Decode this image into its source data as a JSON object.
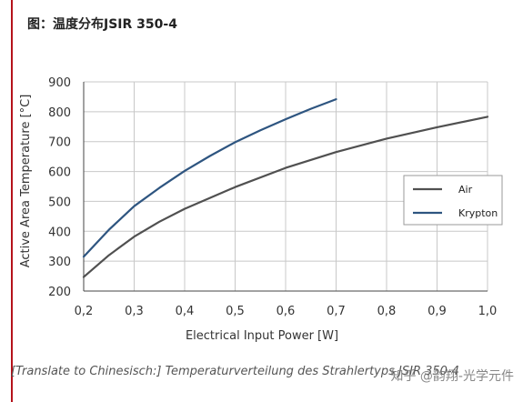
{
  "header": {
    "prefix": "图：",
    "title": "温度分布JSIR 350-4"
  },
  "caption": "[Translate to Chinesisch:] Temperaturverteilung des Strahlertyps JSIR 350-4",
  "watermark": "知乎 @韵翔-光学元件",
  "colors": {
    "air": "#505050",
    "krypton": "#2e5580",
    "grid": "#c8c8c8",
    "accent": "#b5121b"
  },
  "chart_data": {
    "type": "line",
    "xlabel": "Electrical Input Power [W]",
    "ylabel": "Active Area Temperature [°C]",
    "xlim": [
      0.2,
      1.0
    ],
    "ylim": [
      200,
      900
    ],
    "x_ticks": [
      "0,2",
      "0,3",
      "0,4",
      "0,5",
      "0,6",
      "0,7",
      "0,8",
      "0,9",
      "1,0"
    ],
    "y_ticks": [
      "200",
      "300",
      "400",
      "500",
      "600",
      "700",
      "800",
      "900"
    ],
    "grid": true,
    "legend_position": "right",
    "series": [
      {
        "name": "Air",
        "x": [
          0.2,
          0.25,
          0.3,
          0.35,
          0.4,
          0.5,
          0.6,
          0.7,
          0.8,
          0.9,
          1.0
        ],
        "y": [
          247,
          320,
          382,
          432,
          475,
          548,
          612,
          665,
          710,
          748,
          783
        ]
      },
      {
        "name": "Krypton",
        "x": [
          0.2,
          0.25,
          0.3,
          0.35,
          0.4,
          0.45,
          0.5,
          0.55,
          0.6,
          0.65,
          0.7
        ],
        "y": [
          315,
          405,
          484,
          545,
          602,
          652,
          698,
          738,
          775,
          810,
          842
        ]
      }
    ]
  }
}
